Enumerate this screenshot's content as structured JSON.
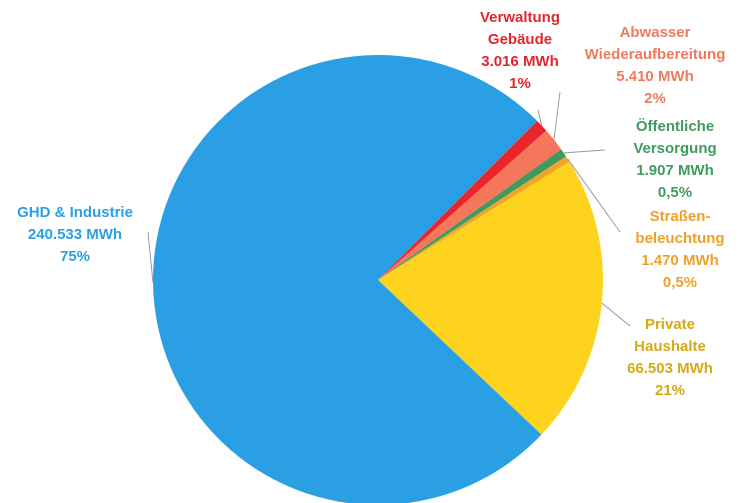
{
  "chart_data": {
    "type": "pie",
    "categories": [
      [
        "Verwaltung",
        "Gebäude"
      ],
      [
        "Abwasser",
        "Wiederaufbereitung"
      ],
      [
        "Öffentliche",
        "Versorgung"
      ],
      [
        "Straßen-",
        "beleuchtung"
      ],
      [
        "Private",
        "Haushalte"
      ],
      [
        "GHD & Industrie"
      ]
    ],
    "values": [
      3016,
      5410,
      1907,
      1470,
      66503,
      240533
    ],
    "value_labels": [
      "3.016 MWh",
      "5.410 MWh",
      "1.907 MWh",
      "1.470 MWh",
      "66.503 MWh",
      "240.533 MWh"
    ],
    "percent_labels": [
      "1%",
      "2%",
      "0,5%",
      "0,5%",
      "21%",
      "75%"
    ],
    "colors": [
      "#e8262b",
      "#f4775c",
      "#3e9a5e",
      "#f0a526",
      "#fdd31e",
      "#2b9fe3"
    ],
    "label_colors": [
      "#e3262d",
      "#f07a5f",
      "#3f9b5f",
      "#f0a02a",
      "#d4aa18",
      "#2b9fe3"
    ]
  }
}
